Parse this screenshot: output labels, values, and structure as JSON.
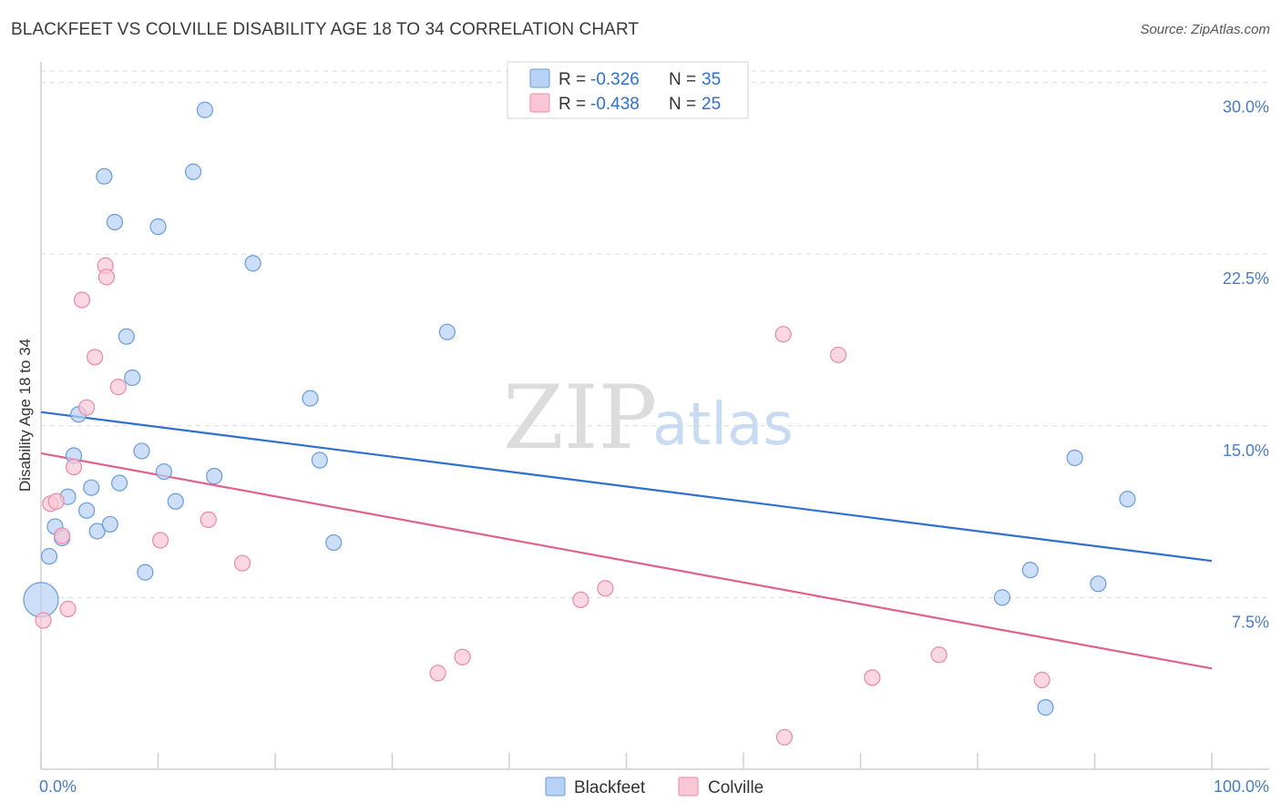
{
  "title": "BLACKFEET VS COLVILLE DISABILITY AGE 18 TO 34 CORRELATION CHART",
  "source": "Source: ZipAtlas.com",
  "colors": {
    "blackfeet_fill": "#b8d2f5",
    "blackfeet_stroke": "#6a9bd9",
    "blackfeet_line": "#2f6fd0",
    "colville_fill": "#f9c6d6",
    "colville_stroke": "#e98aa9",
    "colville_line": "#e0608e",
    "grid": "#d9d9d9",
    "axis_text": "#4a7cc4"
  },
  "watermark": {
    "zip": "ZIP",
    "atlas": "atlas"
  },
  "legend_top": {
    "rows": [
      {
        "r_label": "R = ",
        "r_value": "-0.326",
        "n_label": "N = ",
        "n_value": "35"
      },
      {
        "r_label": "R = ",
        "r_value": "-0.438",
        "n_label": "N = ",
        "n_value": "25"
      }
    ]
  },
  "legend_bottom": {
    "series1": "Blackfeet",
    "series2": "Colville"
  },
  "chart_data": {
    "type": "scatter",
    "title": "BLACKFEET VS COLVILLE DISABILITY AGE 18 TO 34 CORRELATION CHART",
    "xlabel": "",
    "ylabel": "Disability Age 18 to 34",
    "xlim": [
      0,
      100
    ],
    "ylim": [
      0,
      30.5
    ],
    "x_tick_labels": [
      "0.0%",
      "100.0%"
    ],
    "y_ticks": [
      7.5,
      15.0,
      22.5,
      30.0
    ],
    "y_tick_labels": [
      "7.5%",
      "15.0%",
      "22.5%",
      "30.0%"
    ],
    "grid": true,
    "series": [
      {
        "name": "Blackfeet",
        "r": -0.326,
        "n": 35,
        "trend": {
          "x": [
            0,
            100
          ],
          "y": [
            15.6,
            9.1
          ]
        },
        "points": [
          {
            "x": 0.0,
            "y": 7.4,
            "big": true
          },
          {
            "x": 0.7,
            "y": 9.3
          },
          {
            "x": 1.2,
            "y": 10.6
          },
          {
            "x": 1.8,
            "y": 10.1
          },
          {
            "x": 2.3,
            "y": 11.9
          },
          {
            "x": 2.8,
            "y": 13.7
          },
          {
            "x": 3.2,
            "y": 15.5
          },
          {
            "x": 3.9,
            "y": 11.3
          },
          {
            "x": 4.3,
            "y": 12.3
          },
          {
            "x": 4.8,
            "y": 10.4
          },
          {
            "x": 5.4,
            "y": 25.9
          },
          {
            "x": 5.9,
            "y": 10.7
          },
          {
            "x": 6.3,
            "y": 23.9
          },
          {
            "x": 6.7,
            "y": 12.5
          },
          {
            "x": 7.3,
            "y": 18.9
          },
          {
            "x": 7.8,
            "y": 17.1
          },
          {
            "x": 8.6,
            "y": 13.9
          },
          {
            "x": 8.9,
            "y": 8.6
          },
          {
            "x": 10.0,
            "y": 23.7
          },
          {
            "x": 10.5,
            "y": 13.0
          },
          {
            "x": 11.5,
            "y": 11.7
          },
          {
            "x": 13.0,
            "y": 26.1
          },
          {
            "x": 14.0,
            "y": 28.8
          },
          {
            "x": 14.8,
            "y": 12.8
          },
          {
            "x": 18.1,
            "y": 22.1
          },
          {
            "x": 23.0,
            "y": 16.2
          },
          {
            "x": 23.8,
            "y": 13.5
          },
          {
            "x": 25.0,
            "y": 9.9
          },
          {
            "x": 34.7,
            "y": 19.1
          },
          {
            "x": 82.1,
            "y": 7.5
          },
          {
            "x": 84.5,
            "y": 8.7
          },
          {
            "x": 85.8,
            "y": 2.7
          },
          {
            "x": 88.3,
            "y": 13.6
          },
          {
            "x": 90.3,
            "y": 8.1
          },
          {
            "x": 92.8,
            "y": 11.8
          }
        ]
      },
      {
        "name": "Colville",
        "r": -0.438,
        "n": 25,
        "trend": {
          "x": [
            0,
            100
          ],
          "y": [
            13.8,
            4.4
          ]
        },
        "points": [
          {
            "x": 0.2,
            "y": 6.5
          },
          {
            "x": 0.8,
            "y": 11.6
          },
          {
            "x": 1.3,
            "y": 11.7
          },
          {
            "x": 1.8,
            "y": 10.2
          },
          {
            "x": 2.3,
            "y": 7.0
          },
          {
            "x": 2.8,
            "y": 13.2
          },
          {
            "x": 3.5,
            "y": 20.5
          },
          {
            "x": 3.9,
            "y": 15.8
          },
          {
            "x": 4.6,
            "y": 18.0
          },
          {
            "x": 5.5,
            "y": 22.0
          },
          {
            "x": 5.6,
            "y": 21.5
          },
          {
            "x": 6.6,
            "y": 16.7
          },
          {
            "x": 10.2,
            "y": 10.0
          },
          {
            "x": 14.3,
            "y": 10.9
          },
          {
            "x": 17.2,
            "y": 9.0
          },
          {
            "x": 33.9,
            "y": 4.2
          },
          {
            "x": 36.0,
            "y": 4.9
          },
          {
            "x": 46.1,
            "y": 7.4
          },
          {
            "x": 48.2,
            "y": 7.9
          },
          {
            "x": 63.5,
            "y": 1.4
          },
          {
            "x": 63.4,
            "y": 19.0
          },
          {
            "x": 68.1,
            "y": 18.1
          },
          {
            "x": 71.0,
            "y": 4.0
          },
          {
            "x": 76.7,
            "y": 5.0
          },
          {
            "x": 85.5,
            "y": 3.9
          }
        ]
      }
    ]
  }
}
